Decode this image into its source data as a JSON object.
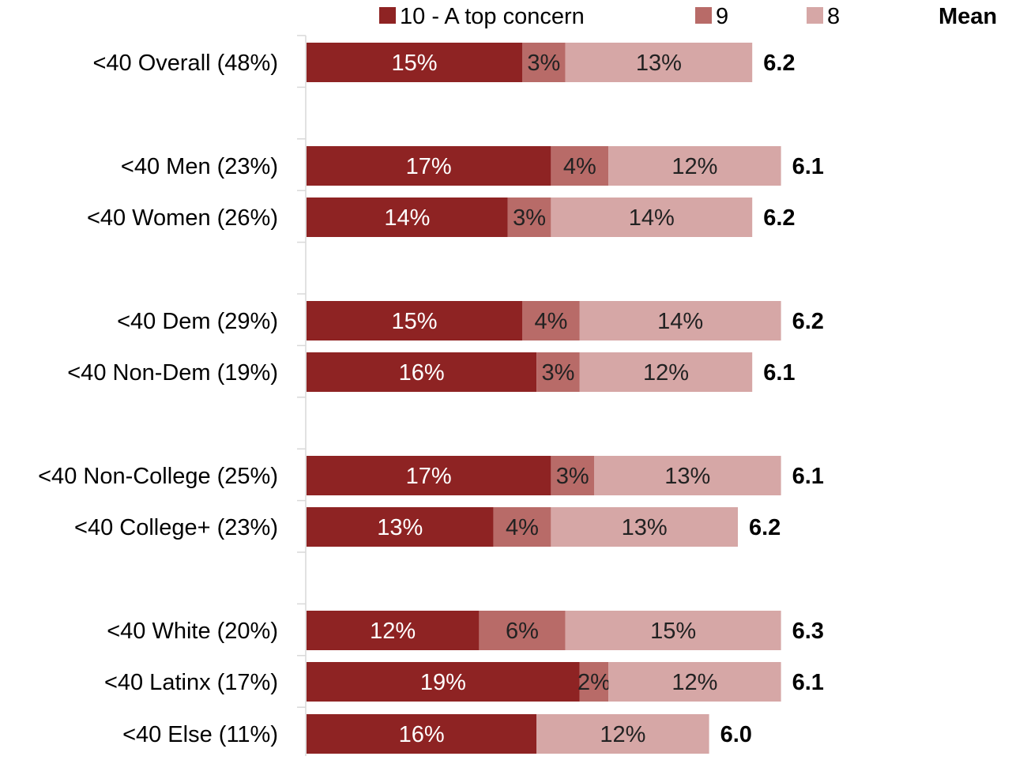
{
  "chart_data": {
    "type": "bar",
    "orientation": "horizontal",
    "stacked": true,
    "legend_position": "top",
    "grid": false,
    "mean_header": "Mean",
    "series": [
      {
        "name": "10 - A top concern",
        "color": "#8e2323"
      },
      {
        "name": "9",
        "color": "#b86b68"
      },
      {
        "name": "8",
        "color": "#d6a7a6"
      }
    ],
    "rows": [
      {
        "label": "<40 Overall (48%)",
        "values": [
          15,
          3,
          13
        ],
        "value_labels": [
          "15%",
          "3%",
          "13%"
        ],
        "mean": "6.2"
      },
      {
        "label": "<40 Men (23%)",
        "values": [
          17,
          4,
          12
        ],
        "value_labels": [
          "17%",
          "4%",
          "12%"
        ],
        "mean": "6.1"
      },
      {
        "label": "<40 Women (26%)",
        "values": [
          14,
          3,
          14
        ],
        "value_labels": [
          "14%",
          "3%",
          "14%"
        ],
        "mean": "6.2"
      },
      {
        "label": "<40 Dem (29%)",
        "values": [
          15,
          4,
          14
        ],
        "value_labels": [
          "15%",
          "4%",
          "14%"
        ],
        "mean": "6.2"
      },
      {
        "label": "<40 Non-Dem (19%)",
        "values": [
          16,
          3,
          12
        ],
        "value_labels": [
          "16%",
          "3%",
          "12%"
        ],
        "mean": "6.1"
      },
      {
        "label": "<40 Non-College (25%)",
        "values": [
          17,
          3,
          13
        ],
        "value_labels": [
          "17%",
          "3%",
          "13%"
        ],
        "mean": "6.1"
      },
      {
        "label": "<40 College+ (23%)",
        "values": [
          13,
          4,
          13
        ],
        "value_labels": [
          "13%",
          "4%",
          "13%"
        ],
        "mean": "6.2"
      },
      {
        "label": "<40 White (20%)",
        "values": [
          12,
          6,
          15
        ],
        "value_labels": [
          "12%",
          "6%",
          "15%"
        ],
        "mean": "6.3"
      },
      {
        "label": "<40 Latinx (17%)",
        "values": [
          19,
          2,
          12
        ],
        "value_labels": [
          "19%",
          "2%",
          "12%"
        ],
        "mean": "6.1"
      },
      {
        "label": "<40 Else (11%)",
        "values": [
          16,
          0,
          12
        ],
        "value_labels": [
          "16%",
          "",
          "12%"
        ],
        "mean": "6.0"
      }
    ]
  }
}
